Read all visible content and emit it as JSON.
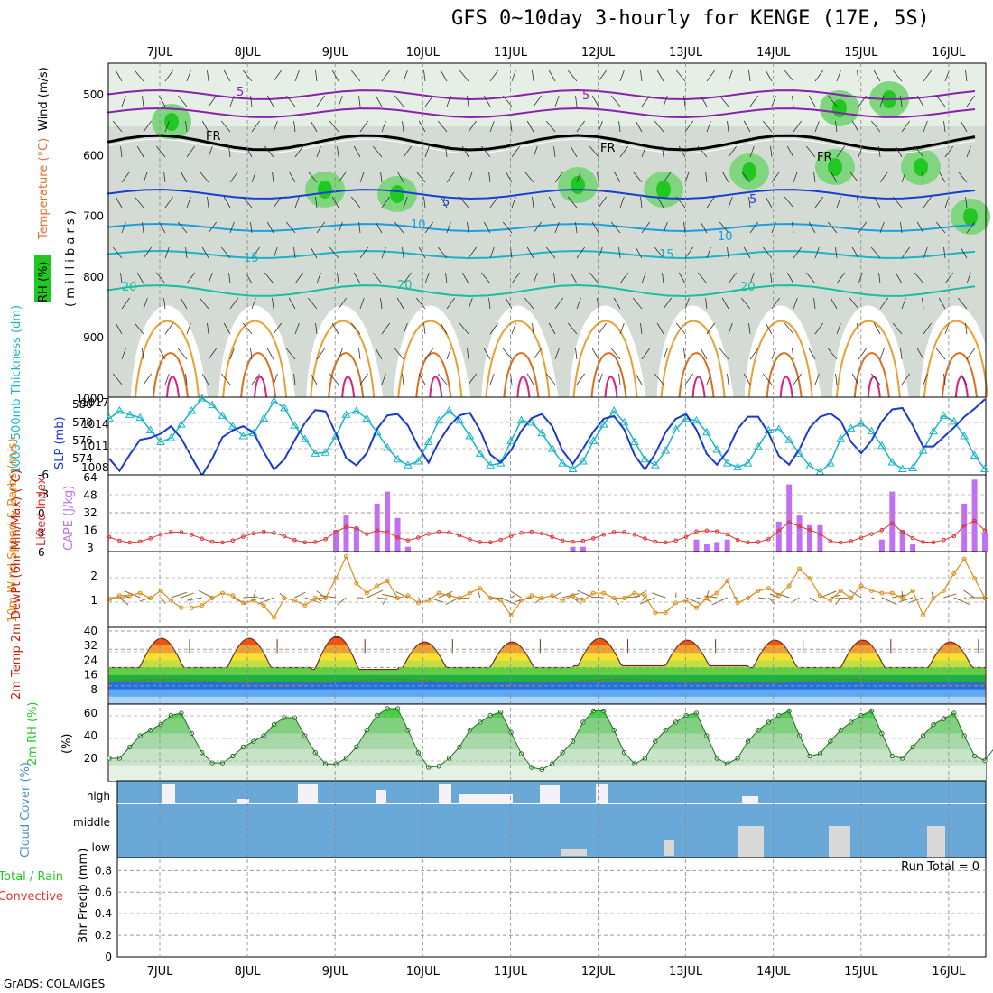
{
  "title": "GFS 0~10day 3-hourly for KENGE (17E, 5S)",
  "credit": "GrADS: COLA/IGES",
  "dates": [
    "7JUL",
    "8JUL",
    "9JUL",
    "10JUL",
    "11JUL",
    "12JUL",
    "13JUL",
    "14JUL",
    "15JUL",
    "16JUL"
  ],
  "colors": {
    "rh_green": "#22c822",
    "temp_orange": "#e07030",
    "cape_purple": "#c070f0",
    "lifted_red": "#e03030",
    "wind_orange": "#e08c14",
    "thick_cyan": "#18b4c8",
    "slp_blue": "#1838d0",
    "cloud_blue": "#6aa8d8",
    "grid": "#999999"
  },
  "chart_data": [
    {
      "type": "heatmap",
      "panel": "upper-air",
      "ylabel_parts": [
        "RH (%)",
        "Temperature (°C)",
        "Wind (m/s)"
      ],
      "ylabel2": "( m i l l i b a r s )",
      "y_ticks": [
        "500",
        "600",
        "700",
        "800",
        "900",
        "1000"
      ],
      "ylim": [
        1000,
        450
      ],
      "contour_labels": [
        "5",
        "5",
        "FR",
        "FR",
        "FR",
        "5",
        "10",
        "10",
        "15",
        "15",
        "20",
        "20",
        "20",
        "5"
      ]
    },
    {
      "type": "line",
      "panel": "thickness-slp",
      "ylabel_left": "1000-500mb Thickness (dm)",
      "ylabel_right": "SLP (mb)",
      "left_ticks": [
        "574",
        "576",
        "578",
        "580"
      ],
      "right_ticks": [
        "1008",
        "1011",
        "1014",
        "1017"
      ],
      "thickness": [
        578.8,
        579.6,
        579.2,
        578.9,
        577.6,
        576.4,
        576.8,
        578.2,
        579.6,
        580.9,
        580.2,
        579.1,
        578.0,
        577.0,
        577.3,
        578.8,
        580.6,
        579.9,
        578.1,
        576.7,
        575.2,
        575.3,
        577.0,
        579.2,
        579.6,
        578.8,
        577.4,
        575.8,
        574.6,
        574.0,
        574.4,
        576.4,
        578.6,
        579.6,
        578.6,
        577.0,
        575.2,
        574.0,
        574.2,
        576.5,
        578.6,
        578.4,
        577.3,
        575.7,
        574.2,
        573.6,
        574.4,
        576.5,
        578.2,
        579.6,
        578.4,
        576.4,
        574.6,
        574.0,
        575.5,
        577.7,
        578.8,
        578.6,
        577.4,
        575.6,
        574.2,
        573.8,
        574.2,
        575.9,
        577.6,
        577.7,
        576.6,
        575.2,
        573.9,
        573.3,
        574.2,
        576.7,
        577.8,
        578.3,
        577.5,
        576.0,
        574.3,
        573.6,
        573.7,
        575.5,
        577.5,
        579.1,
        578.5,
        577.0,
        575.0,
        573.6
      ],
      "slp": [
        1009.4,
        1007.6,
        1010.0,
        1012.2,
        1012.5,
        1013.1,
        1014.2,
        1012.4,
        1009.6,
        1006.9,
        1009.4,
        1012.6,
        1013.6,
        1014.2,
        1013.3,
        1010.4,
        1007.8,
        1009.3,
        1012.1,
        1014.7,
        1016.6,
        1016.4,
        1013.1,
        1009.5,
        1008.4,
        1010.2,
        1013.8,
        1015.8,
        1016.0,
        1014.3,
        1011.2,
        1008.8,
        1011.9,
        1014.2,
        1015.8,
        1016.2,
        1013.6,
        1010.0,
        1008.8,
        1010.6,
        1013.5,
        1015.4,
        1016.0,
        1014.2,
        1010.6,
        1008.6,
        1010.9,
        1013.4,
        1015.3,
        1015.7,
        1013.7,
        1009.9,
        1007.8,
        1010.1,
        1013.3,
        1015.3,
        1016.0,
        1013.7,
        1010.1,
        1008.5,
        1010.5,
        1013.8,
        1015.6,
        1015.6,
        1013.2,
        1009.8,
        1008.5,
        1010.8,
        1014.0,
        1015.6,
        1016.1,
        1015.0,
        1011.9,
        1010.2,
        1012.1,
        1014.9,
        1016.7,
        1016.9,
        1014.3,
        1011.2,
        1011.2,
        1012.6,
        1014.0,
        1015.6,
        1016.8,
        1018.2
      ]
    },
    {
      "type": "bar",
      "panel": "cape-li",
      "ylabel_left": "Lifted Index",
      "ylabel_right": "CAPE (J/kg)",
      "left_ticks": [
        "-6",
        "-3",
        "0",
        "3",
        "6"
      ],
      "right_ticks": [
        "3",
        "16",
        "32",
        "48",
        "64"
      ],
      "cape": [
        0,
        0,
        0,
        0,
        0,
        0,
        0,
        0,
        0,
        0,
        0,
        0,
        0,
        0,
        0,
        0,
        0,
        0,
        0,
        0,
        0,
        0,
        18,
        30,
        20,
        0,
        40,
        50,
        28,
        4,
        0,
        0,
        0,
        0,
        0,
        0,
        0,
        0,
        0,
        0,
        0,
        0,
        0,
        0,
        0,
        4,
        4,
        0,
        0,
        0,
        0,
        0,
        0,
        0,
        0,
        0,
        0,
        10,
        6,
        8,
        10,
        0,
        0,
        0,
        0,
        25,
        56,
        30,
        22,
        22,
        0,
        0,
        0,
        0,
        0,
        10,
        50,
        18,
        6,
        0,
        0,
        0,
        0,
        40,
        60,
        16
      ]
    },
    {
      "type": "line",
      "panel": "wind10m",
      "ylabel": "10m Wind Speed & Barbs (m/s)",
      "y_ticks": [
        "1",
        "2"
      ],
      "speed": [
        1.1,
        1.3,
        1.3,
        1.4,
        1.2,
        1.5,
        1.1,
        0.8,
        0.8,
        0.9,
        1.2,
        1.4,
        1.3,
        1.0,
        1.1,
        0.9,
        0.4,
        1.2,
        1.1,
        0.9,
        1.2,
        1.2,
        2.0,
        2.9,
        1.8,
        1.4,
        1.7,
        1.9,
        1.2,
        1.3,
        1.0,
        1.1,
        1.4,
        1.3,
        1.2,
        1.4,
        1.6,
        1.2,
        1.1,
        0.5,
        1.1,
        1.3,
        1.2,
        1.3,
        1.1,
        1.3,
        1.1,
        1.4,
        1.4,
        1.2,
        1.2,
        1.4,
        1.3,
        0.6,
        0.6,
        1.0,
        1.1,
        0.8,
        1.2,
        1.4,
        1.9,
        1.0,
        1.2,
        1.5,
        1.6,
        1.3,
        1.7,
        2.4,
        2.0,
        1.3,
        1.1,
        1.5,
        1.2,
        1.7,
        1.5,
        1.4,
        1.4,
        1.2,
        1.5,
        0.5,
        1.2,
        1.5,
        2.2,
        2.8,
        2.0,
        1.2
      ]
    },
    {
      "type": "area",
      "panel": "temp2m",
      "ylabel": "2m Temp 2m DewPt (6hr Min/Max) (°C)",
      "y_ticks": [
        "8",
        "16",
        "24",
        "32",
        "40"
      ],
      "temp_day_max": [
        36,
        36,
        37,
        34,
        34,
        36,
        35,
        35,
        35,
        34
      ],
      "temp_night_min": [
        20,
        20,
        19,
        20,
        20,
        21,
        21,
        20,
        20,
        20
      ],
      "dewpoint": [
        12,
        12,
        14,
        13,
        12,
        13,
        13,
        12,
        13,
        12
      ]
    },
    {
      "type": "area",
      "panel": "rh2m",
      "ylabel": "2m RH (%)",
      "y_ticks": [
        "20",
        "40",
        "60"
      ],
      "rh": [
        20,
        20,
        30,
        40,
        45,
        50,
        58,
        60,
        42,
        25,
        16,
        16,
        22,
        30,
        35,
        40,
        50,
        56,
        56,
        40,
        25,
        15,
        15,
        20,
        30,
        45,
        58,
        64,
        64,
        45,
        25,
        12,
        13,
        20,
        30,
        45,
        52,
        58,
        61,
        43,
        24,
        12,
        10,
        15,
        25,
        35,
        52,
        62,
        62,
        45,
        25,
        15,
        20,
        35,
        45,
        52,
        58,
        60,
        40,
        20,
        15,
        20,
        35,
        45,
        52,
        58,
        62,
        40,
        22,
        24,
        35,
        45,
        52,
        58,
        62,
        42,
        22,
        20,
        30,
        40,
        50,
        55,
        60,
        40,
        22,
        18,
        30,
        42,
        50,
        55,
        59
      ]
    },
    {
      "type": "bar",
      "panel": "cloud",
      "ylabel": "Cloud Cover (%)",
      "categories": [
        "high",
        "middle",
        "low"
      ]
    },
    {
      "type": "bar",
      "panel": "precip",
      "ylabel_left": "Total / Rain",
      "ylabel_left2": "Convective",
      "ylabel": "3hr Precip (mm)",
      "y_ticks": [
        "0",
        "0.2",
        "0.4",
        "0.6",
        "0.8"
      ],
      "run_total": "Run Total = 0"
    }
  ]
}
